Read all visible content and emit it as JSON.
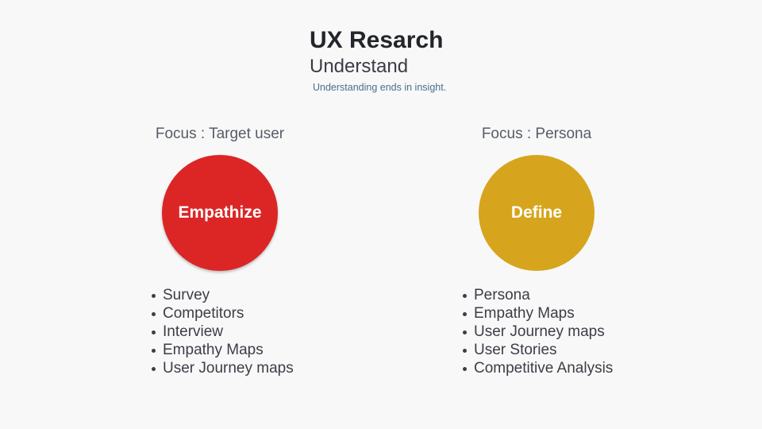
{
  "header": {
    "title": "UX Resarch",
    "subtitle": "Understand",
    "tagline": "Understanding ends in insight."
  },
  "columns": [
    {
      "focus": "Focus : Target user",
      "circle_label": "Empathize",
      "color": "#dc2626",
      "items": [
        "Survey",
        "Competitors",
        "Interview",
        "Empathy Maps",
        "User Journey maps"
      ]
    },
    {
      "focus": "Focus : Persona",
      "circle_label": "Define",
      "color": "#d6a51d",
      "items": [
        "Persona",
        "Empathy Maps",
        "User Journey maps",
        "User Stories",
        "Competitive Analysis"
      ]
    }
  ]
}
